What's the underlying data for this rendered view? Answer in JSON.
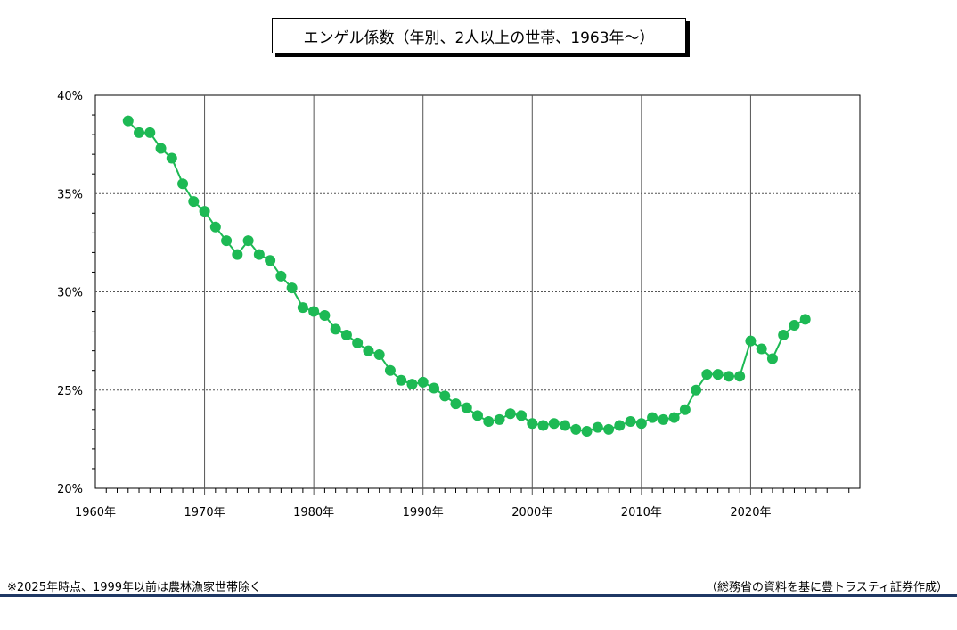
{
  "chart_data": {
    "type": "line",
    "title": "エンゲル係数（年別、2人以上の世帯、1963年～）",
    "xlabel": "",
    "ylabel": "",
    "xlim": [
      1960,
      2030
    ],
    "ylim": [
      20,
      40
    ],
    "x_ticks": [
      {
        "value": 1960,
        "label": "1960年"
      },
      {
        "value": 1970,
        "label": "1970年"
      },
      {
        "value": 1980,
        "label": "1980年"
      },
      {
        "value": 1990,
        "label": "1990年"
      },
      {
        "value": 2000,
        "label": "2000年"
      },
      {
        "value": 2010,
        "label": "2010年"
      },
      {
        "value": 2020,
        "label": "2020年"
      }
    ],
    "y_ticks": [
      {
        "value": 20,
        "label": "20%"
      },
      {
        "value": 25,
        "label": "25%"
      },
      {
        "value": 30,
        "label": "30%"
      },
      {
        "value": 35,
        "label": "35%"
      },
      {
        "value": 40,
        "label": "40%"
      }
    ],
    "grid": true,
    "legend": false,
    "series": [
      {
        "color": "#1db954",
        "x": [
          1963,
          1964,
          1965,
          1966,
          1967,
          1968,
          1969,
          1970,
          1971,
          1972,
          1973,
          1974,
          1975,
          1976,
          1977,
          1978,
          1979,
          1980,
          1981,
          1982,
          1983,
          1984,
          1985,
          1986,
          1987,
          1988,
          1989,
          1990,
          1991,
          1992,
          1993,
          1994,
          1995,
          1996,
          1997,
          1998,
          1999,
          2000,
          2001,
          2002,
          2003,
          2004,
          2005,
          2006,
          2007,
          2008,
          2009,
          2010,
          2011,
          2012,
          2013,
          2014,
          2015,
          2016,
          2017,
          2018,
          2019,
          2020,
          2021,
          2022,
          2023,
          2024,
          2025
        ],
        "values": [
          38.7,
          38.1,
          38.1,
          37.3,
          36.8,
          35.5,
          34.6,
          34.1,
          33.3,
          32.6,
          31.9,
          32.6,
          31.9,
          31.6,
          30.8,
          30.2,
          29.2,
          29.0,
          28.8,
          28.1,
          27.8,
          27.4,
          27.0,
          26.8,
          26.0,
          25.5,
          25.3,
          25.4,
          25.1,
          24.7,
          24.3,
          24.1,
          23.7,
          23.4,
          23.5,
          23.8,
          23.7,
          23.3,
          23.2,
          23.3,
          23.2,
          23.0,
          22.9,
          23.1,
          23.0,
          23.2,
          23.4,
          23.3,
          23.6,
          23.5,
          23.6,
          24.0,
          25.0,
          25.8,
          25.8,
          25.7,
          25.7,
          27.5,
          27.1,
          26.6,
          27.8,
          28.3,
          28.6
        ]
      }
    ]
  },
  "footer": {
    "note": "※2025年時点、1999年以前は農林漁家世帯除く",
    "source": "（総務省の資料を基に豊トラスティ証券作成）"
  }
}
